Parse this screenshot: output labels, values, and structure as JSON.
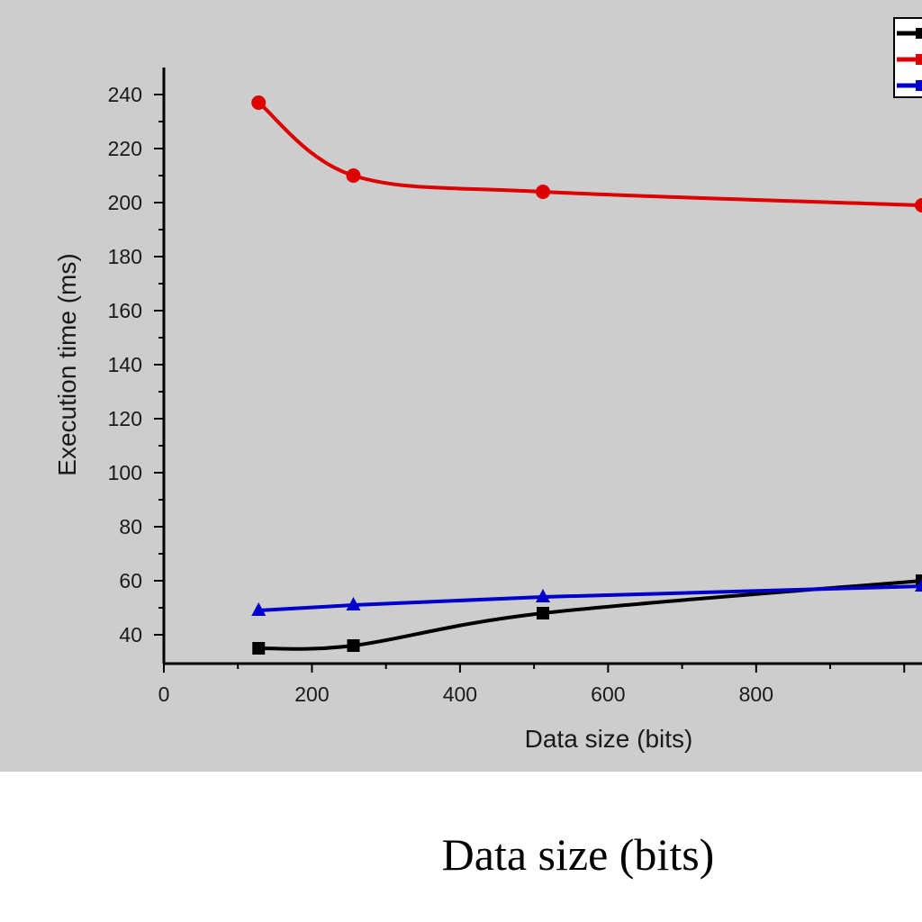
{
  "caption": "Data size (bits)",
  "chart_data": {
    "type": "line",
    "xlabel": "Data size (bits)",
    "ylabel": "Execution time (ms)",
    "xlim": [
      0,
      1024
    ],
    "ylim": [
      30,
      250
    ],
    "x_ticks": [
      0,
      200,
      400,
      600,
      800
    ],
    "y_ticks": [
      40,
      60,
      80,
      100,
      120,
      140,
      160,
      180,
      200,
      220,
      240
    ],
    "grid": false,
    "legend_position": "top-right",
    "background": "#cdcdcd",
    "series": [
      {
        "color": "#000000",
        "marker": "square",
        "smooth": true,
        "x": [
          128,
          256,
          512,
          1024
        ],
        "y": [
          35,
          36,
          48,
          60
        ]
      },
      {
        "color": "#dd0000",
        "marker": "circle",
        "smooth": true,
        "x": [
          128,
          256,
          512,
          1024
        ],
        "y": [
          237,
          210,
          204,
          199
        ]
      },
      {
        "color": "#0000cc",
        "marker": "triangle",
        "smooth": false,
        "x": [
          128,
          256,
          512,
          1024
        ],
        "y": [
          49,
          51,
          54,
          58
        ]
      }
    ]
  }
}
